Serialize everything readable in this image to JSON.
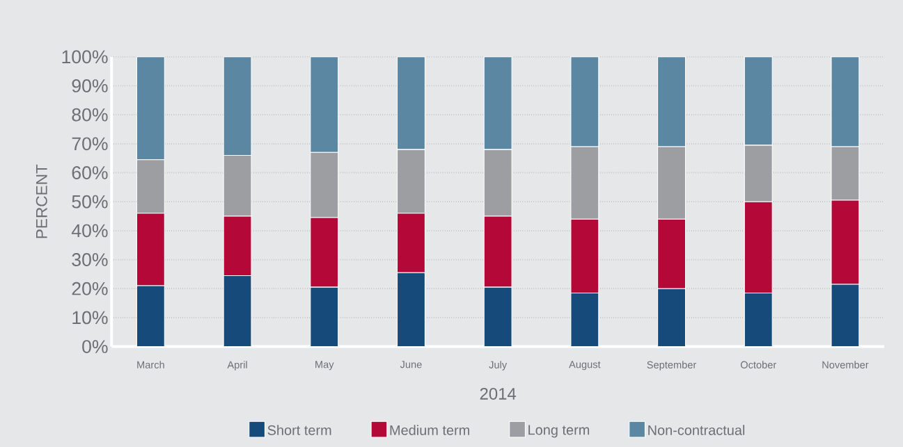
{
  "chart_data": {
    "type": "bar",
    "stacked": true,
    "xlabel": "2014",
    "ylabel": "PERCENT",
    "categories": [
      "March",
      "April",
      "May",
      "June",
      "July",
      "August",
      "September",
      "October",
      "November"
    ],
    "series": [
      {
        "name": "Short term",
        "color": "#154a7a",
        "values": [
          21,
          24.5,
          20.5,
          25.5,
          20.5,
          18.5,
          20,
          18.5,
          21.5
        ]
      },
      {
        "name": "Medium term",
        "color": "#b30838",
        "values": [
          25,
          20.5,
          24,
          20.5,
          24.5,
          25.5,
          24,
          31.5,
          29
        ]
      },
      {
        "name": "Long term",
        "color": "#9d9ea2",
        "values": [
          18.5,
          21,
          22.5,
          22,
          23,
          25,
          25,
          19.5,
          18.5
        ]
      },
      {
        "name": "Non-contractual",
        "color": "#5b87a3",
        "values": [
          35.5,
          34,
          33,
          32,
          32,
          31,
          31,
          30.5,
          31
        ]
      }
    ],
    "ylim": [
      0,
      100
    ],
    "yticks": [
      {
        "value": 0,
        "label": "0%"
      },
      {
        "value": 10,
        "label": "10%"
      },
      {
        "value": 20,
        "label": "20%"
      },
      {
        "value": 30,
        "label": "30%"
      },
      {
        "value": 40,
        "label": "40%"
      },
      {
        "value": 50,
        "label": "50%"
      },
      {
        "value": 60,
        "label": "60%"
      },
      {
        "value": 70,
        "label": "70%"
      },
      {
        "value": 80,
        "label": "80%"
      },
      {
        "value": 90,
        "label": "90%"
      },
      {
        "value": 100,
        "label": "100%"
      }
    ],
    "grid": "y",
    "legend": "bottom"
  }
}
